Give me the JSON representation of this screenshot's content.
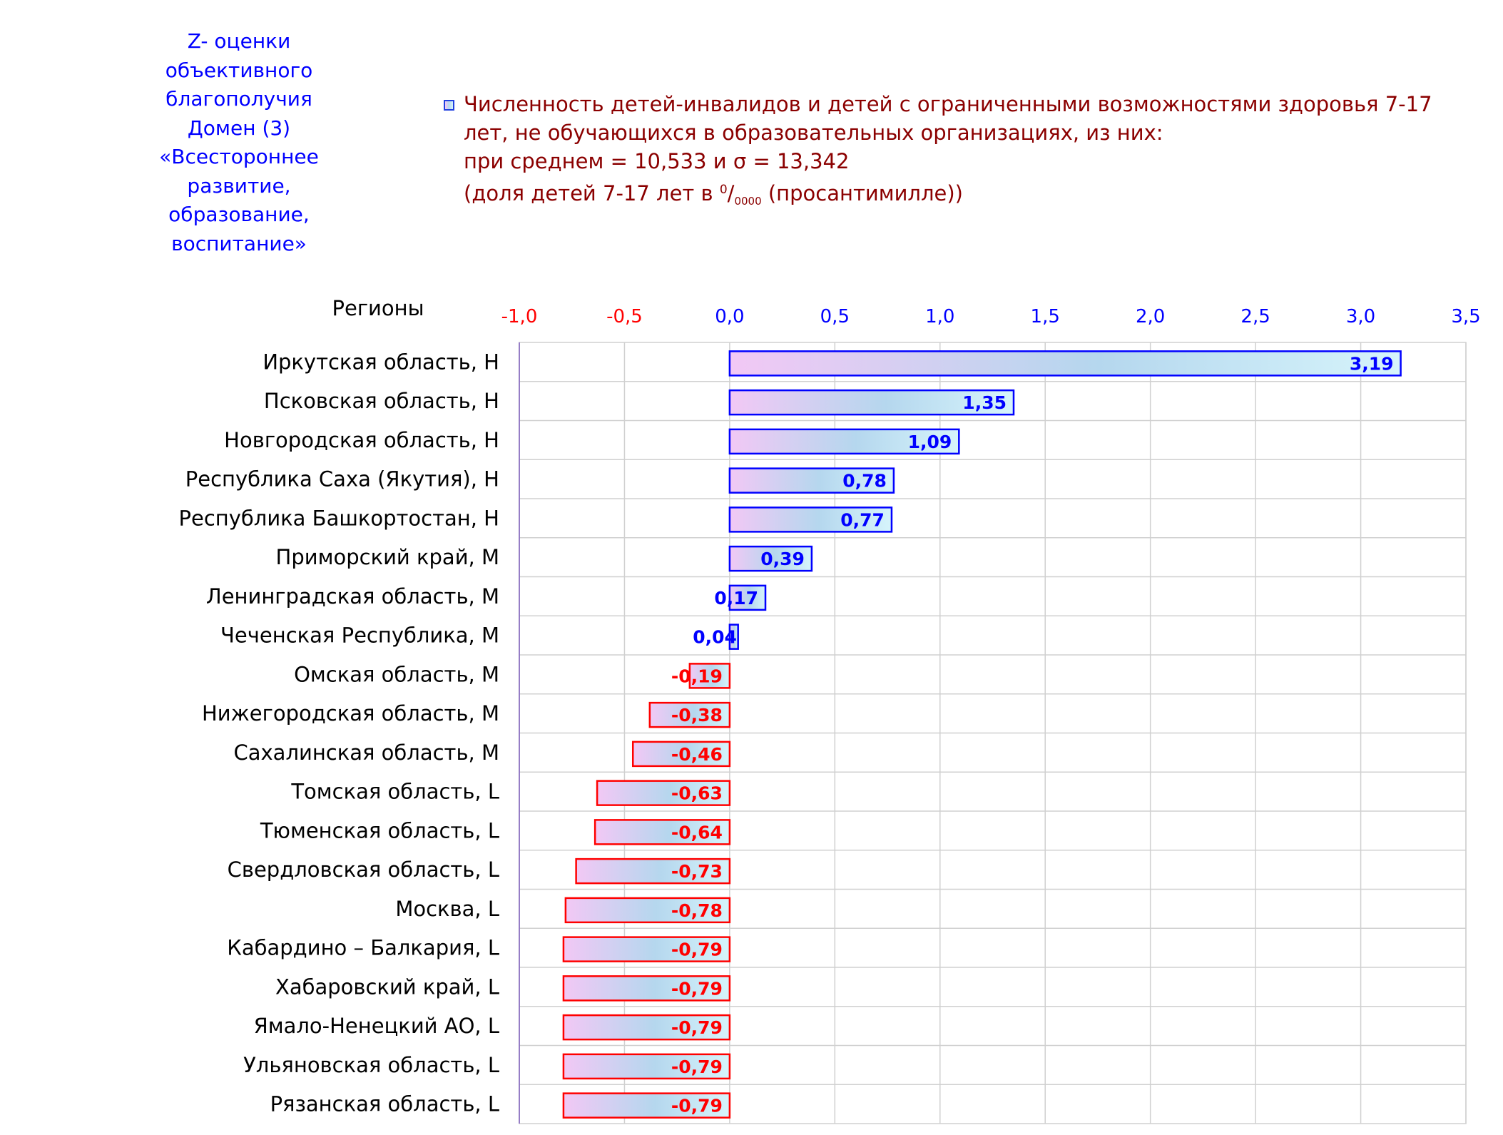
{
  "side_title": {
    "lines": [
      "Z- оценки",
      "объективного",
      "благополучия",
      "Домен (3)",
      "«Всестороннее",
      "развитие,",
      "образование,",
      "воспитание»"
    ]
  },
  "legend": {
    "line1": "Численность детей-инвалидов и детей с ограниченными возможностями здоровья 7-17",
    "line2": "лет, не обучающихся в образовательных организациях, из них:",
    "line3": "при среднем = 10,533  и σ = 13,342",
    "line4_prefix": "(доля детей 7-17 лет в ",
    "line4_sup": "0",
    "line4_slash": "/",
    "line4_sub": "0000",
    "line4_suffix": " (просантимилле))",
    "swatch_colors": [
      "#f2c8f5",
      "#b5d7ee",
      "#d6f4fb"
    ]
  },
  "chart_data": {
    "type": "bar",
    "orientation": "horizontal",
    "category_axis_label": "Регионы",
    "xlim": [
      -1.0,
      3.5
    ],
    "ticks": [
      "-1,0",
      "-0,5",
      "0,0",
      "0,5",
      "1,0",
      "1,5",
      "2,0",
      "2,5",
      "3,0",
      "3,5"
    ],
    "tick_values": [
      -1.0,
      -0.5,
      0.0,
      0.5,
      1.0,
      1.5,
      2.0,
      2.5,
      3.0,
      3.5
    ],
    "grid": true,
    "categories": [
      "Иркутская область,  H",
      "Псковская область,  H",
      "Новгородская область,  H",
      "Республика Саха (Якутия),  H",
      "Республика Башкортостан,  H",
      "Приморский край,  M",
      "Ленинградская область,  M",
      "Чеченская Республика,  M",
      "Омская область,  M",
      "Нижегородская область,  M",
      "Сахалинская область,  M",
      "Томская область,  L",
      "Тюменская область,  L",
      "Свердловская область,  L",
      "Москва,  L",
      "Кабардино – Балкария,  L",
      "Хабаровский край,  L",
      "Ямало-Ненецкий АО,  L",
      "Ульяновская область,  L",
      "Рязанская область,  L"
    ],
    "values": [
      3.19,
      1.35,
      1.09,
      0.78,
      0.77,
      0.39,
      0.17,
      0.04,
      -0.19,
      -0.38,
      -0.46,
      -0.63,
      -0.64,
      -0.73,
      -0.78,
      -0.79,
      -0.79,
      -0.79,
      -0.79,
      -0.79
    ],
    "labels": [
      "3,19",
      "1,35",
      "1,09",
      "0,78",
      "0,77",
      "0,39",
      "0,17",
      "0,04",
      "-0,19",
      "-0,38",
      "-0,46",
      "-0,63",
      "-0,64",
      "-0,73",
      "-0,78",
      "-0,79",
      "-0,79",
      "-0,79",
      "-0,79",
      "-0,79"
    ],
    "colors": {
      "positive": "#0000ff",
      "negative": "#ff0000",
      "grid": "#d0d0d0",
      "gradient": [
        "#f2c8f5",
        "#b5d7ee",
        "#d6f4fb"
      ]
    }
  }
}
